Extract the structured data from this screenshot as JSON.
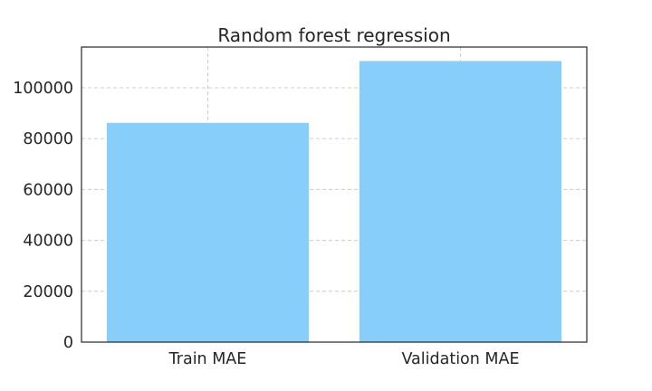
{
  "chart_data": {
    "type": "bar",
    "title": "Random forest regression",
    "xlabel": "",
    "ylabel": "",
    "categories": [
      "Train MAE",
      "Validation MAE"
    ],
    "values": [
      86200,
      110500
    ],
    "ylim": [
      0,
      116000
    ],
    "yticks": [
      0,
      20000,
      40000,
      60000,
      80000,
      100000
    ],
    "grid": true,
    "bar_color": "#87cefa"
  }
}
